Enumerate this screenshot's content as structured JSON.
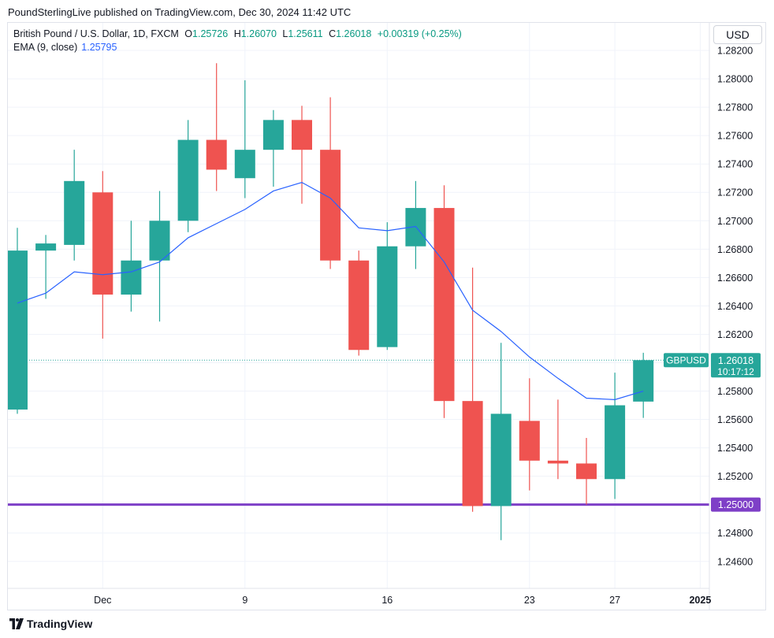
{
  "header": {
    "published": "PoundSterlingLive published on TradingView.com, Dec 30, 2024 11:42 UTC"
  },
  "legend": {
    "symbol": "British Pound / U.S. Dollar, 1D, FXCM",
    "o_label": "O",
    "o_value": "1.25726",
    "h_label": "H",
    "h_value": "1.26070",
    "l_label": "L",
    "l_value": "1.25611",
    "c_label": "C",
    "c_value": "1.26018",
    "change": "+0.00319 (+0.25%)",
    "ema_label": "EMA (9, close)",
    "ema_value": "1.25795"
  },
  "currency_button": "USD",
  "footer": {
    "brand": "TradingView"
  },
  "price_tag": {
    "symbol": "GBPUSD",
    "price": "1.26018",
    "countdown": "10:17:12"
  },
  "level_tag": {
    "price": "1.25000"
  },
  "colors": {
    "up": "#26a69a",
    "down": "#ef5350",
    "ema": "#2962ff",
    "level": "#7e3fc7",
    "tag": "#26a69a"
  },
  "chart_data": {
    "type": "candlestick",
    "ylim": [
      1.2441,
      1.284
    ],
    "y_ticks": [
      "1.24600",
      "1.24800",
      "1.25000",
      "1.25200",
      "1.25400",
      "1.25600",
      "1.25800",
      "1.26000",
      "1.26200",
      "1.26400",
      "1.26600",
      "1.26800",
      "1.27000",
      "1.27200",
      "1.27400",
      "1.27600",
      "1.27800",
      "1.28000",
      "1.28200"
    ],
    "x_labels": [
      {
        "label": "Dec",
        "index": 3.0
      },
      {
        "label": "9",
        "index": 8.0
      },
      {
        "label": "16",
        "index": 13.0
      },
      {
        "label": "23",
        "index": 18.0
      },
      {
        "label": "27",
        "index": 21.0
      },
      {
        "label": "2025",
        "index": 24.0
      }
    ],
    "candles": [
      {
        "o": 1.2567,
        "h": 1.2695,
        "l": 1.2564,
        "c": 1.2679
      },
      {
        "o": 1.2679,
        "h": 1.269,
        "l": 1.2645,
        "c": 1.2684
      },
      {
        "o": 1.2683,
        "h": 1.275,
        "l": 1.2672,
        "c": 1.2728
      },
      {
        "o": 1.272,
        "h": 1.2735,
        "l": 1.2617,
        "c": 1.2648
      },
      {
        "o": 1.2648,
        "h": 1.27,
        "l": 1.2636,
        "c": 1.2672
      },
      {
        "o": 1.2672,
        "h": 1.2721,
        "l": 1.2629,
        "c": 1.27
      },
      {
        "o": 1.27,
        "h": 1.2771,
        "l": 1.2692,
        "c": 1.2757
      },
      {
        "o": 1.2757,
        "h": 1.2811,
        "l": 1.2721,
        "c": 1.2736
      },
      {
        "o": 1.273,
        "h": 1.2799,
        "l": 1.2716,
        "c": 1.275
      },
      {
        "o": 1.275,
        "h": 1.2778,
        "l": 1.2724,
        "c": 1.2771
      },
      {
        "o": 1.2771,
        "h": 1.2781,
        "l": 1.2712,
        "c": 1.275
      },
      {
        "o": 1.275,
        "h": 1.2787,
        "l": 1.2666,
        "c": 1.2672
      },
      {
        "o": 1.2672,
        "h": 1.2679,
        "l": 1.2605,
        "c": 1.2609
      },
      {
        "o": 1.2611,
        "h": 1.2699,
        "l": 1.2609,
        "c": 1.2682
      },
      {
        "o": 1.2682,
        "h": 1.2728,
        "l": 1.2666,
        "c": 1.2709
      },
      {
        "o": 1.2709,
        "h": 1.2725,
        "l": 1.2561,
        "c": 1.2573
      },
      {
        "o": 1.2573,
        "h": 1.2667,
        "l": 1.2495,
        "c": 1.2499
      },
      {
        "o": 1.2499,
        "h": 1.2614,
        "l": 1.2475,
        "c": 1.2564
      },
      {
        "o": 1.2559,
        "h": 1.2589,
        "l": 1.251,
        "c": 1.2531
      },
      {
        "o": 1.2531,
        "h": 1.2574,
        "l": 1.2518,
        "c": 1.2529
      },
      {
        "o": 1.2529,
        "h": 1.2547,
        "l": 1.25,
        "c": 1.2518
      },
      {
        "o": 1.2518,
        "h": 1.2593,
        "l": 1.2504,
        "c": 1.257
      },
      {
        "o": 1.25726,
        "h": 1.2607,
        "l": 1.25611,
        "c": 1.26018
      }
    ],
    "ema": {
      "name": "EMA (9, close)",
      "points": [
        {
          "i": 0,
          "v": 1.2642
        },
        {
          "i": 1,
          "v": 1.2649
        },
        {
          "i": 2,
          "v": 1.2664
        },
        {
          "i": 3,
          "v": 1.2662
        },
        {
          "i": 4,
          "v": 1.2664
        },
        {
          "i": 5,
          "v": 1.2671
        },
        {
          "i": 6,
          "v": 1.2688
        },
        {
          "i": 7,
          "v": 1.2698
        },
        {
          "i": 8,
          "v": 1.2708
        },
        {
          "i": 9,
          "v": 1.2721
        },
        {
          "i": 10,
          "v": 1.2727
        },
        {
          "i": 11,
          "v": 1.2716
        },
        {
          "i": 12,
          "v": 1.2695
        },
        {
          "i": 13,
          "v": 1.2693
        },
        {
          "i": 14,
          "v": 1.2696
        },
        {
          "i": 15,
          "v": 1.2671
        },
        {
          "i": 16,
          "v": 1.2637
        },
        {
          "i": 17,
          "v": 1.2622
        },
        {
          "i": 18,
          "v": 1.2604
        },
        {
          "i": 19,
          "v": 1.2589
        },
        {
          "i": 20,
          "v": 1.2575
        },
        {
          "i": 21,
          "v": 1.2574
        },
        {
          "i": 22,
          "v": 1.258
        }
      ]
    },
    "level_line": 1.25,
    "last_close": 1.26018
  }
}
